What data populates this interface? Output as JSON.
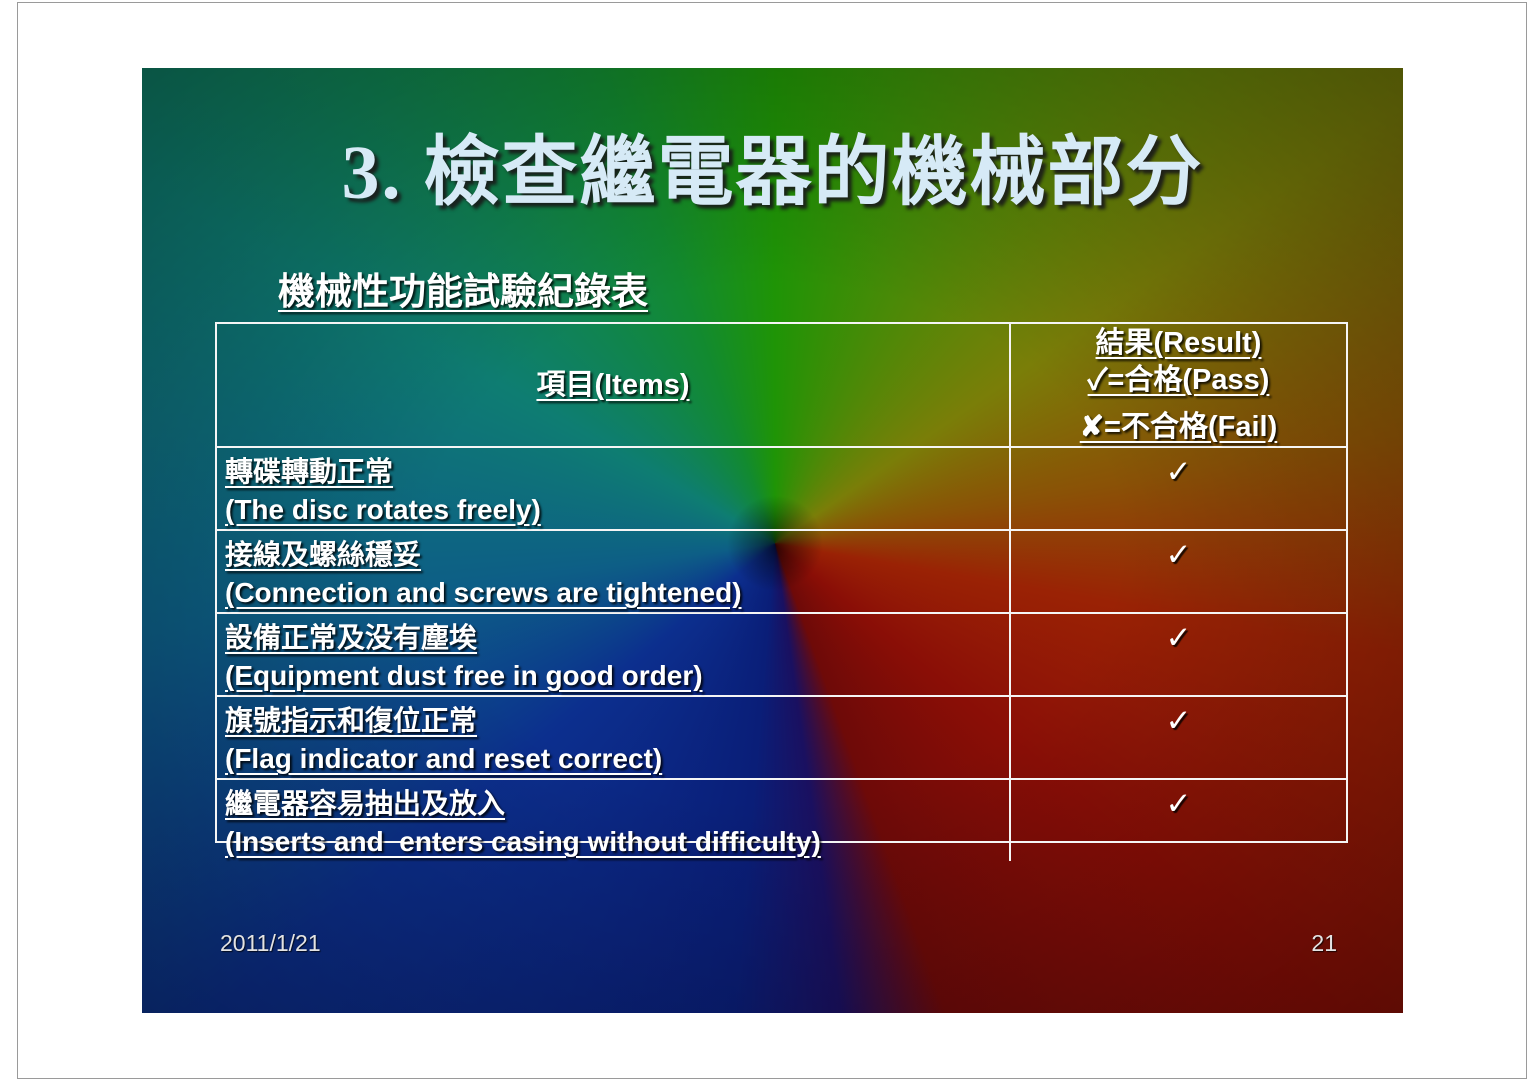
{
  "slide": {
    "title": "3. 檢查繼電器的機械部分",
    "subtitle": "機械性功能試驗紀錄表",
    "table": {
      "header": {
        "items_label": "項目(Items)",
        "result_line1": "結果(Result)",
        "result_line2": "✓=合格(Pass)",
        "result_line3": "✘=不合格(Fail)"
      },
      "rows": [
        {
          "zh": "轉碟轉動正常",
          "en": "(The disc rotates freely)",
          "result": "✓"
        },
        {
          "zh": "接線及螺絲穩妥",
          "en": "(Connection and screws are tightened)",
          "result": "✓"
        },
        {
          "zh": "設備正常及没有塵埃",
          "en": "(Equipment dust free in good order)",
          "result": "✓"
        },
        {
          "zh": "旗號指示和復位正常",
          "en": "(Flag indicator and reset correct)",
          "result": "✓"
        },
        {
          "zh": "繼電器容易抽出及放入",
          "en": "(Inserts and  enters casing without difficulty)",
          "result": "✓"
        }
      ]
    },
    "footer": {
      "date": "2011/1/21",
      "page_number": "21"
    },
    "colors": {
      "title_text": "#d6eaf6",
      "body_text": "#ffffff",
      "table_border": "#f5f5f5",
      "background_green": "#1f9406",
      "background_olive": "#7a7e08",
      "background_red": "#8a0e06",
      "background_blue": "#0c2f8e",
      "background_teal": "#0e7d72"
    }
  }
}
